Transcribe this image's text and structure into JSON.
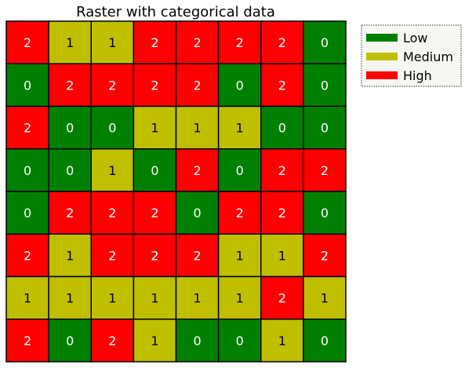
{
  "chart_data": {
    "type": "heatmap",
    "title": "Raster with categorical data",
    "categories": [
      {
        "value": 0,
        "label": "Low",
        "color": "#008000"
      },
      {
        "value": 1,
        "label": "Medium",
        "color": "#bfbf00"
      },
      {
        "value": 2,
        "label": "High",
        "color": "#ff0000"
      }
    ],
    "grid": [
      [
        2,
        1,
        1,
        2,
        2,
        2,
        2,
        0
      ],
      [
        0,
        2,
        2,
        2,
        2,
        0,
        2,
        0
      ],
      [
        2,
        0,
        0,
        1,
        1,
        1,
        0,
        0
      ],
      [
        0,
        0,
        1,
        0,
        2,
        0,
        2,
        2
      ],
      [
        0,
        2,
        2,
        2,
        0,
        2,
        2,
        0
      ],
      [
        2,
        1,
        2,
        2,
        2,
        1,
        1,
        2
      ],
      [
        1,
        1,
        1,
        1,
        1,
        1,
        2,
        1
      ],
      [
        2,
        0,
        2,
        1,
        0,
        0,
        1,
        0
      ]
    ],
    "legend_position": "outside-top-right",
    "cell_label_colors": {
      "0": "#ffffff",
      "1": "#000000",
      "2": "#ffffff"
    }
  }
}
